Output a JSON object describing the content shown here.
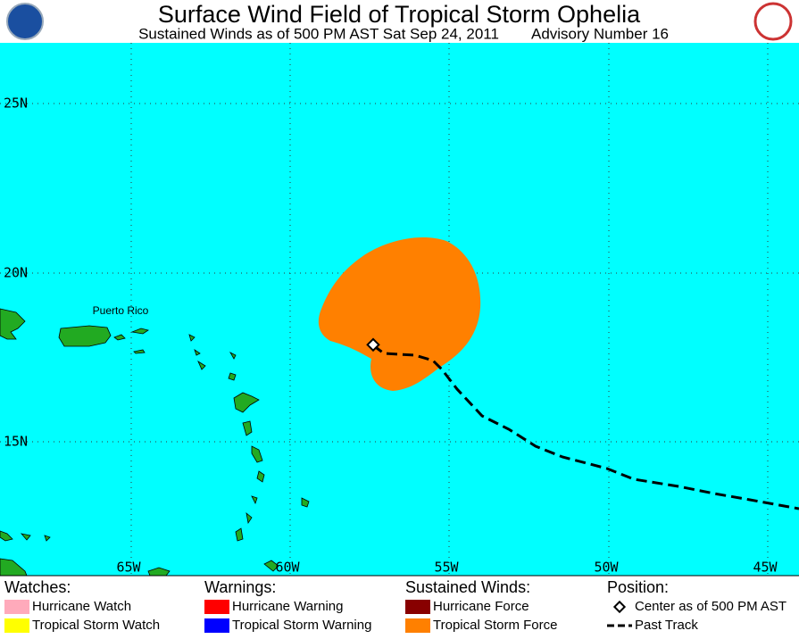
{
  "header": {
    "title": "Surface Wind Field of Tropical Storm Ophelia",
    "subtitle": "Sustained Winds as of 500 PM AST Sat Sep 24, 2011",
    "advisory": "Advisory Number 16"
  },
  "map": {
    "lat_labels": [
      "25N",
      "20N",
      "15N"
    ],
    "lon_labels": [
      "65W",
      "60W",
      "55W",
      "50W",
      "45W"
    ],
    "place_labels": [
      "Puerto Rico"
    ],
    "ocean_color": "#00ffff",
    "land_color": "#22aa22",
    "wind_field_color": "#ff8000"
  },
  "legend": {
    "watches": {
      "title": "Watches:",
      "items": [
        {
          "label": "Hurricane Watch",
          "color": "#ffaabb"
        },
        {
          "label": "Tropical Storm Watch",
          "color": "#ffff00"
        }
      ]
    },
    "warnings": {
      "title": "Warnings:",
      "items": [
        {
          "label": "Hurricane Warning",
          "color": "#ff0000"
        },
        {
          "label": "Tropical Storm Warning",
          "color": "#0000ff"
        }
      ]
    },
    "winds": {
      "title": "Sustained Winds:",
      "items": [
        {
          "label": "Hurricane Force",
          "color": "#880000"
        },
        {
          "label": "Tropical Storm Force",
          "color": "#ff8000"
        }
      ]
    },
    "position": {
      "title": "Position:",
      "items": [
        {
          "label": "Center as of 500 PM AST"
        },
        {
          "label": "Past Track"
        }
      ]
    }
  }
}
